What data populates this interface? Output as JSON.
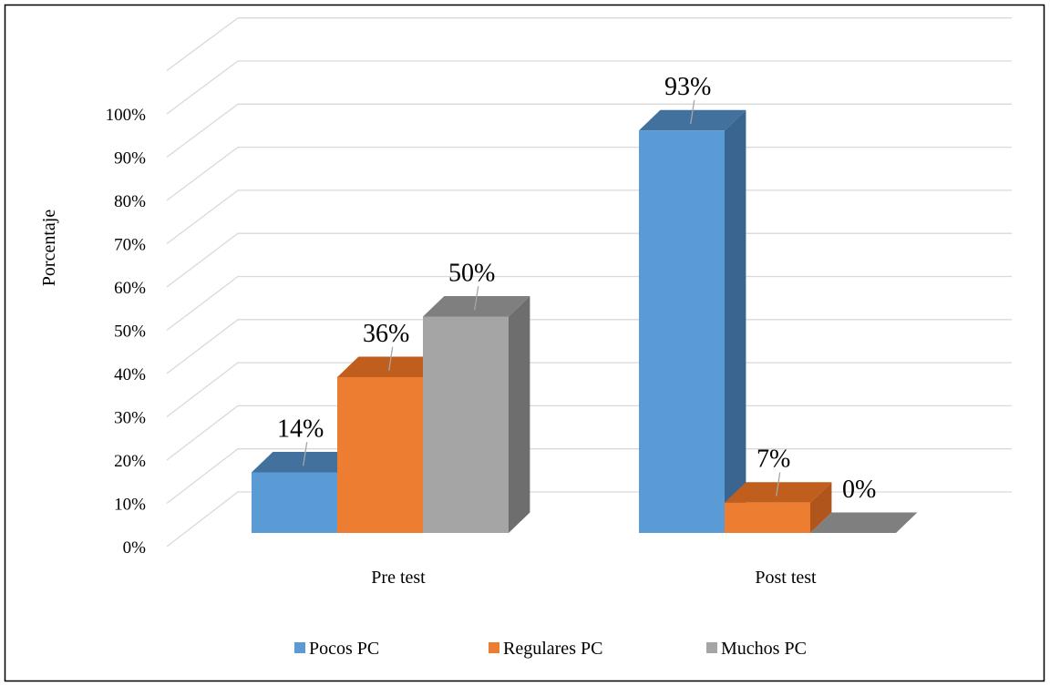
{
  "chart_data": {
    "type": "bar",
    "title": "",
    "xlabel": "",
    "ylabel": "Porcentaje",
    "ylim": [
      0,
      100
    ],
    "y_ticks": [
      "0%",
      "10%",
      "20%",
      "30%",
      "40%",
      "50%",
      "60%",
      "70%",
      "80%",
      "90%",
      "100%"
    ],
    "categories": [
      "Pre test",
      "Post test"
    ],
    "series": [
      {
        "name": "Pocos PC",
        "values": [
          14,
          93
        ],
        "labels": [
          "14%",
          "93%"
        ],
        "color": "#5B9BD5",
        "top_color": "#41719C",
        "side_color": "#3A6590"
      },
      {
        "name": "Regulares PC",
        "values": [
          36,
          7
        ],
        "labels": [
          "36%",
          "7%"
        ],
        "color": "#ED7D31",
        "top_color": "#C05E1E",
        "side_color": "#B0561C"
      },
      {
        "name": "Muchos PC",
        "values": [
          50,
          0
        ],
        "labels": [
          "50%",
          "0%"
        ],
        "color": "#A5A5A5",
        "top_color": "#7F7F7F",
        "side_color": "#6E6E6E"
      }
    ],
    "grid": true,
    "legend_position": "bottom",
    "three_d": true
  }
}
